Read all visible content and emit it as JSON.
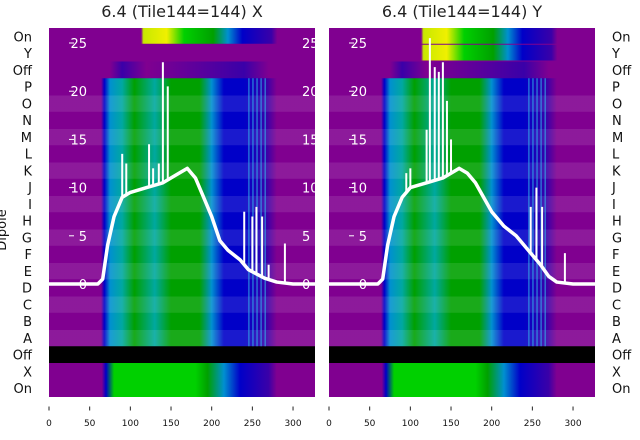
{
  "chart_data": {
    "type": "heatmap",
    "ylabel": "Dipole",
    "row_labels": [
      "On",
      "Y",
      "Off",
      "P",
      "O",
      "N",
      "M",
      "L",
      "K",
      "J",
      "I",
      "H",
      "G",
      "F",
      "E",
      "D",
      "C",
      "B",
      "A",
      "Off",
      "X",
      "On"
    ],
    "x_ticks": [
      0,
      50,
      100,
      150,
      200,
      250,
      300
    ],
    "xlim": [
      0,
      327
    ],
    "inner_y_ticks": [
      0,
      5,
      10,
      15,
      20,
      25
    ],
    "inner_ylim": [
      -11,
      27
    ],
    "colormap": [
      "#800090",
      "#3a00a8",
      "#0000c8",
      "#0090d0",
      "#00a8a0",
      "#00a000",
      "#00d000",
      "#c8e800",
      "#f0f000"
    ],
    "panels": [
      {
        "title": "6.4 (Tile144=144) X",
        "curve": [
          [
            0,
            0
          ],
          [
            60,
            0
          ],
          [
            66,
            0.5
          ],
          [
            72,
            4
          ],
          [
            80,
            7
          ],
          [
            90,
            9
          ],
          [
            100,
            9.5
          ],
          [
            120,
            10
          ],
          [
            140,
            10.5
          ],
          [
            160,
            11.5
          ],
          [
            170,
            12
          ],
          [
            180,
            11
          ],
          [
            190,
            9
          ],
          [
            200,
            7
          ],
          [
            210,
            4.5
          ],
          [
            220,
            3.5
          ],
          [
            235,
            2.5
          ],
          [
            245,
            1.5
          ],
          [
            265,
            0.6
          ],
          [
            280,
            0.2
          ],
          [
            300,
            0
          ],
          [
            327,
            0
          ]
        ],
        "spikes": [
          [
            90,
            13.5
          ],
          [
            95,
            12.5
          ],
          [
            123,
            14.5
          ],
          [
            128,
            12
          ],
          [
            135,
            12.5
          ],
          [
            140,
            23
          ],
          [
            146,
            20.5
          ],
          [
            240,
            7.5
          ],
          [
            250,
            7
          ],
          [
            255,
            8
          ],
          [
            262,
            7
          ],
          [
            270,
            2
          ],
          [
            290,
            4.2
          ]
        ]
      },
      {
        "title": "6.4 (Tile144=144) Y",
        "curve": [
          [
            0,
            0
          ],
          [
            60,
            0
          ],
          [
            66,
            0.5
          ],
          [
            72,
            4
          ],
          [
            80,
            7
          ],
          [
            90,
            9
          ],
          [
            100,
            10
          ],
          [
            120,
            10.5
          ],
          [
            140,
            11
          ],
          [
            160,
            12
          ],
          [
            170,
            11.5
          ],
          [
            180,
            10.5
          ],
          [
            190,
            9
          ],
          [
            200,
            7.5
          ],
          [
            215,
            6
          ],
          [
            230,
            5
          ],
          [
            245,
            3.5
          ],
          [
            260,
            2
          ],
          [
            270,
            0.8
          ],
          [
            280,
            0.2
          ],
          [
            300,
            0
          ],
          [
            327,
            0
          ]
        ],
        "spikes": [
          [
            95,
            11.5
          ],
          [
            100,
            12
          ],
          [
            120,
            16
          ],
          [
            124,
            25.5
          ],
          [
            130,
            22.5
          ],
          [
            135,
            22
          ],
          [
            140,
            23
          ],
          [
            145,
            19
          ],
          [
            150,
            15
          ],
          [
            248,
            8
          ],
          [
            255,
            10
          ],
          [
            262,
            8
          ],
          [
            290,
            3.2
          ]
        ]
      }
    ]
  }
}
